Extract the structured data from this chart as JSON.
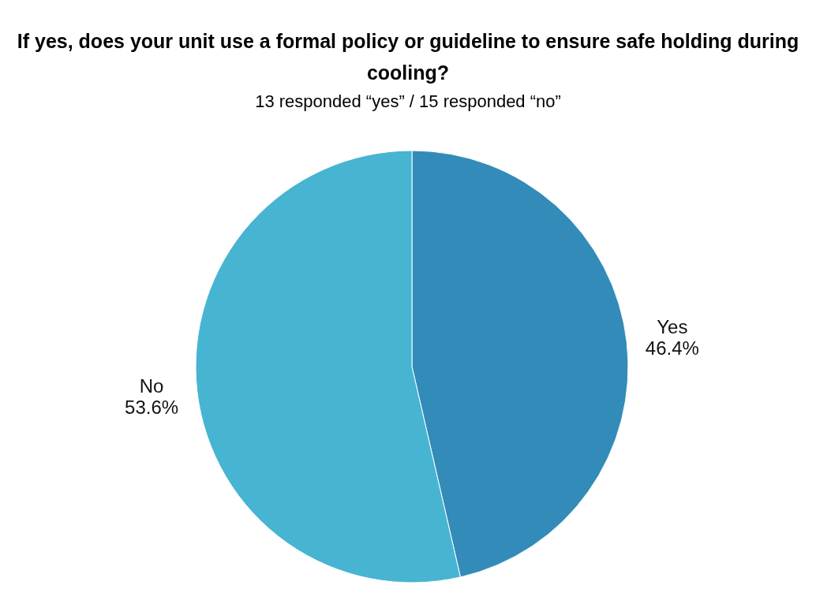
{
  "chart_data": {
    "type": "pie",
    "title": "If yes, does your unit use a formal policy or guideline to ensure safe holding during cooling?",
    "subtitle": "13 responded “yes” / 15 responded “no”",
    "categories": [
      "Yes",
      "No"
    ],
    "values": [
      46.4,
      53.6
    ],
    "value_labels": [
      "46.4%",
      "53.6%"
    ],
    "colors": [
      "#328bb8",
      "#47b4d2"
    ],
    "legend": false
  }
}
